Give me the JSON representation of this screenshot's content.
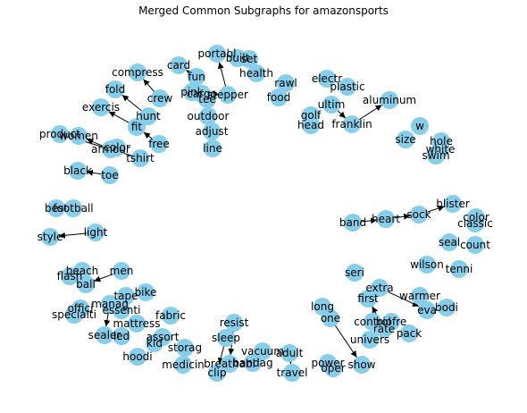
{
  "title": "Merged Common Subgraphs for amazonsports",
  "colors": {
    "node": "#87ceeb",
    "edge": "#000000",
    "text": "#000000"
  },
  "graph": {
    "nodes": [
      {
        "id": "n0",
        "label": "card"
      },
      {
        "id": "n1",
        "label": "portabl"
      },
      {
        "id": "n2",
        "label": "built"
      },
      {
        "id": "n3",
        "label": "set"
      },
      {
        "id": "n4",
        "label": "health"
      },
      {
        "id": "n5",
        "label": "compress"
      },
      {
        "id": "n6",
        "label": "fun"
      },
      {
        "id": "n7",
        "label": "pink"
      },
      {
        "id": "n8",
        "label": "cargo"
      },
      {
        "id": "n9",
        "label": "tee"
      },
      {
        "id": "n10",
        "label": "stepper"
      },
      {
        "id": "n11",
        "label": "rawl"
      },
      {
        "id": "n12",
        "label": "food"
      },
      {
        "id": "n13",
        "label": "electr"
      },
      {
        "id": "n14",
        "label": "plastic"
      },
      {
        "id": "n15",
        "label": "fold"
      },
      {
        "id": "n16",
        "label": "crew"
      },
      {
        "id": "n17",
        "label": "ultim"
      },
      {
        "id": "n18",
        "label": "aluminum"
      },
      {
        "id": "n19",
        "label": "exercis"
      },
      {
        "id": "n20",
        "label": "hunt"
      },
      {
        "id": "n21",
        "label": "outdoor"
      },
      {
        "id": "n22",
        "label": "golf"
      },
      {
        "id": "n23",
        "label": "head"
      },
      {
        "id": "n24",
        "label": "franklin"
      },
      {
        "id": "n25",
        "label": "fit"
      },
      {
        "id": "n26",
        "label": "adjust"
      },
      {
        "id": "n27",
        "label": "w"
      },
      {
        "id": "n28",
        "label": "product"
      },
      {
        "id": "n29",
        "label": "women"
      },
      {
        "id": "n30",
        "label": "free"
      },
      {
        "id": "n31",
        "label": "line"
      },
      {
        "id": "n32",
        "label": "size"
      },
      {
        "id": "n33",
        "label": "hole"
      },
      {
        "id": "n34",
        "label": "armour"
      },
      {
        "id": "n35",
        "label": "color"
      },
      {
        "id": "n36",
        "label": "white"
      },
      {
        "id": "n37",
        "label": "swim"
      },
      {
        "id": "n38",
        "label": "tshirt"
      },
      {
        "id": "n39",
        "label": "black"
      },
      {
        "id": "n40",
        "label": "toe"
      },
      {
        "id": "n41",
        "label": "blister"
      },
      {
        "id": "n42",
        "label": "sock"
      },
      {
        "id": "n43",
        "label": "best"
      },
      {
        "id": "n44",
        "label": "football"
      },
      {
        "id": "n45",
        "label": "color"
      },
      {
        "id": "n46",
        "label": "band"
      },
      {
        "id": "n47",
        "label": "heart"
      },
      {
        "id": "n48",
        "label": "classic"
      },
      {
        "id": "n49",
        "label": "light"
      },
      {
        "id": "n50",
        "label": "style"
      },
      {
        "id": "n51",
        "label": "seal"
      },
      {
        "id": "n52",
        "label": "count"
      },
      {
        "id": "n53",
        "label": "wilson"
      },
      {
        "id": "n54",
        "label": "tenni"
      },
      {
        "id": "n55",
        "label": "beach"
      },
      {
        "id": "n56",
        "label": "men"
      },
      {
        "id": "n57",
        "label": "flash"
      },
      {
        "id": "n58",
        "label": "ball"
      },
      {
        "id": "n59",
        "label": "seri"
      },
      {
        "id": "n60",
        "label": "bike"
      },
      {
        "id": "n61",
        "label": "extra"
      },
      {
        "id": "n62",
        "label": "tape"
      },
      {
        "id": "n63",
        "label": "offici"
      },
      {
        "id": "n64",
        "label": "manag"
      },
      {
        "id": "n65",
        "label": "essenti"
      },
      {
        "id": "n66",
        "label": "warmer"
      },
      {
        "id": "n67",
        "label": "first"
      },
      {
        "id": "n68",
        "label": "bodi"
      },
      {
        "id": "n69",
        "label": "specialti"
      },
      {
        "id": "n70",
        "label": "eva"
      },
      {
        "id": "n71",
        "label": "long"
      },
      {
        "id": "n72",
        "label": "fabric"
      },
      {
        "id": "n73",
        "label": "mattress"
      },
      {
        "id": "n74",
        "label": "one"
      },
      {
        "id": "n75",
        "label": "control"
      },
      {
        "id": "n76",
        "label": "rate"
      },
      {
        "id": "n77",
        "label": "pack"
      },
      {
        "id": "n78",
        "label": "biofre"
      },
      {
        "id": "n79",
        "label": "sealer"
      },
      {
        "id": "n80",
        "label": "led"
      },
      {
        "id": "n81",
        "label": "resist"
      },
      {
        "id": "n82",
        "label": "assort"
      },
      {
        "id": "n83",
        "label": "kid"
      },
      {
        "id": "n84",
        "label": "univers"
      },
      {
        "id": "n85",
        "label": "sleep"
      },
      {
        "id": "n86",
        "label": "hoodi"
      },
      {
        "id": "n87",
        "label": "storag"
      },
      {
        "id": "n88",
        "label": "vacuum"
      },
      {
        "id": "n89",
        "label": "adult"
      },
      {
        "id": "n90",
        "label": "medicin"
      },
      {
        "id": "n91",
        "label": "breathabl"
      },
      {
        "id": "n92",
        "label": "bandag"
      },
      {
        "id": "n93",
        "label": "power"
      },
      {
        "id": "n94",
        "label": "clip"
      },
      {
        "id": "n95",
        "label": "travel"
      },
      {
        "id": "n96",
        "label": "oper"
      },
      {
        "id": "n97",
        "label": "show"
      }
    ],
    "edges": [
      {
        "from": "n6",
        "to": "n0"
      },
      {
        "from": "n10",
        "to": "n1"
      },
      {
        "from": "n9",
        "to": "n7"
      },
      {
        "from": "n8",
        "to": "n10"
      },
      {
        "from": "n16",
        "to": "n5"
      },
      {
        "from": "n20",
        "to": "n15"
      },
      {
        "from": "n25",
        "to": "n19"
      },
      {
        "from": "n30",
        "to": "n25"
      },
      {
        "from": "n20",
        "to": "n25"
      },
      {
        "from": "n24",
        "to": "n18"
      },
      {
        "from": "n17",
        "to": "n24"
      },
      {
        "from": "n38",
        "to": "n28"
      },
      {
        "from": "n34",
        "to": "n29"
      },
      {
        "from": "n40",
        "to": "n39"
      },
      {
        "from": "n49",
        "to": "n50"
      },
      {
        "from": "n47",
        "to": "n42"
      },
      {
        "from": "n42",
        "to": "n41"
      },
      {
        "from": "n46",
        "to": "n47"
      },
      {
        "from": "n56",
        "to": "n58"
      },
      {
        "from": "n55",
        "to": "n58"
      },
      {
        "from": "n64",
        "to": "n79"
      },
      {
        "from": "n61",
        "to": "n70"
      },
      {
        "from": "n76",
        "to": "n67"
      },
      {
        "from": "n71",
        "to": "n97"
      },
      {
        "from": "n85",
        "to": "n94"
      },
      {
        "from": "n89",
        "to": "n95"
      },
      {
        "from": "n81",
        "to": "n91"
      }
    ]
  }
}
